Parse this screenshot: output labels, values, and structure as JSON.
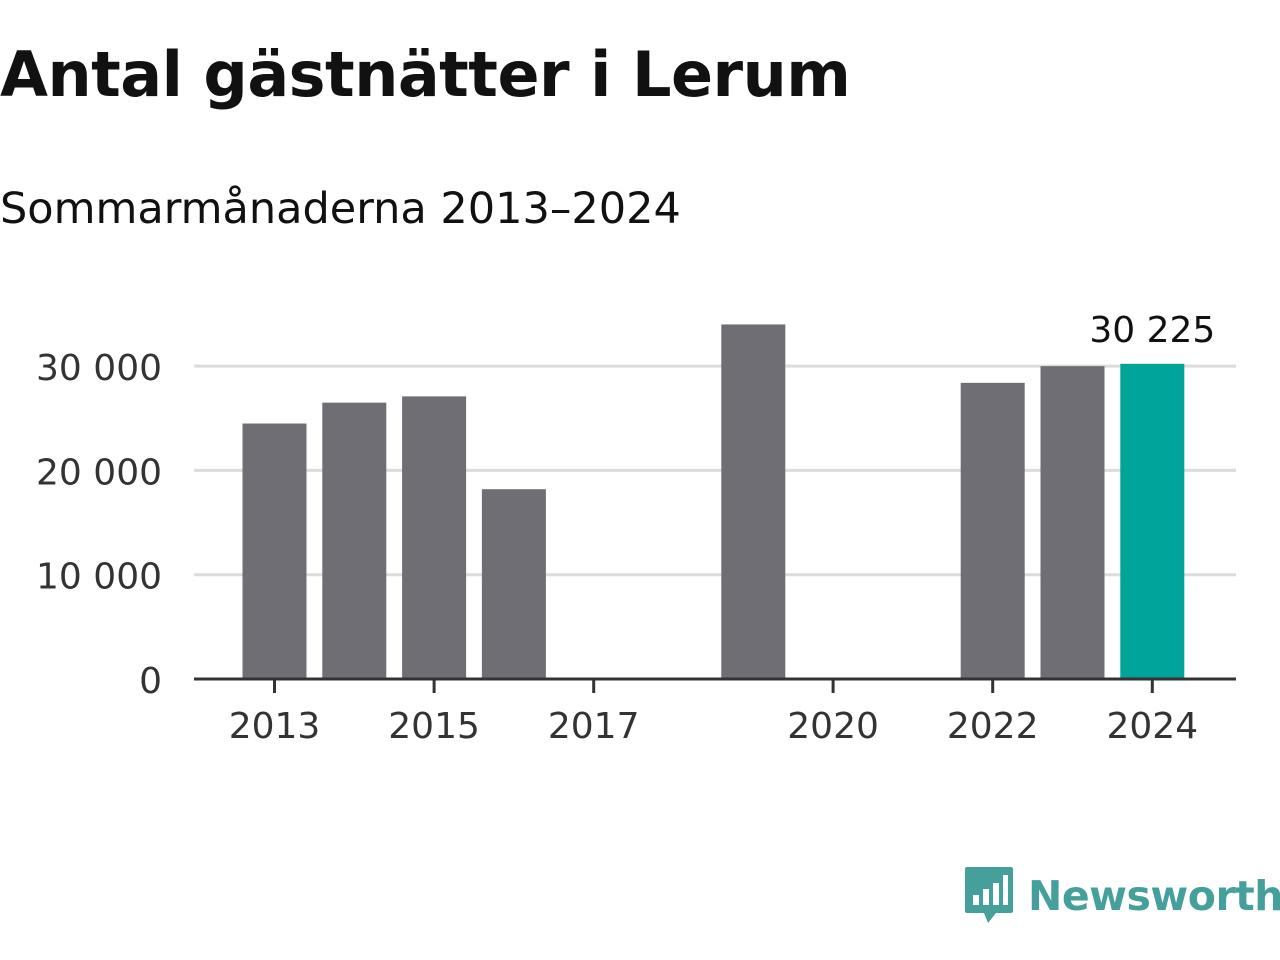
{
  "title": "Antal gästnätter i Lerum",
  "subtitle": "Sommarmånaderna 2013–2024",
  "brand": {
    "name": "Newsworthy",
    "icon": "newsworthy-logo-icon",
    "color": "#45a09b"
  },
  "colors": {
    "bar": "#6f6e74",
    "highlight": "#00a498",
    "grid": "#dcdcdc",
    "axis": "#333333",
    "text": "#111111"
  },
  "chart_data": {
    "type": "bar",
    "categories": [
      "2013",
      "2014",
      "2015",
      "2016",
      "2017",
      "2018",
      "2019",
      "2020",
      "2021",
      "2022",
      "2023",
      "2024"
    ],
    "values": [
      24500,
      26500,
      27100,
      18200,
      null,
      null,
      34000,
      null,
      null,
      28400,
      30000,
      30225
    ],
    "highlight_index": 11,
    "data_labels": [
      {
        "index": 11,
        "text": "30 225"
      }
    ],
    "x_tick_labels": [
      "2013",
      "2015",
      "2017",
      "2020",
      "2022",
      "2024"
    ],
    "y_ticks": [
      0,
      10000,
      20000,
      30000
    ],
    "y_tick_labels": [
      "0",
      "10 000",
      "20 000",
      "30 000"
    ],
    "ylim": [
      0,
      35000
    ],
    "grid": true,
    "xlabel": "",
    "ylabel": ""
  }
}
